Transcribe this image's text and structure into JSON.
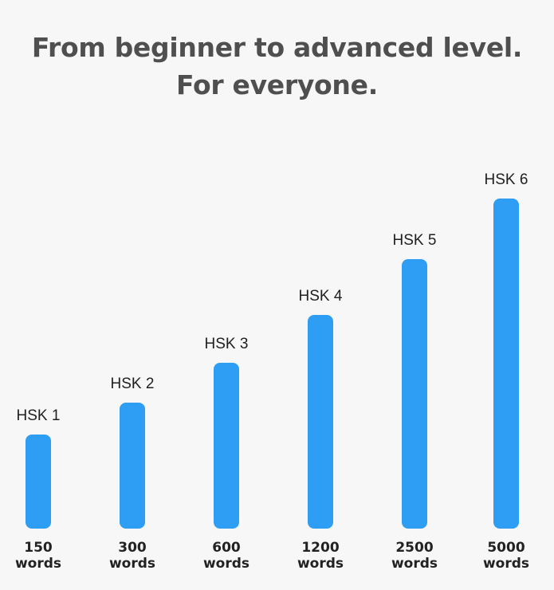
{
  "header": {
    "line1": "From beginner to advanced level.",
    "line2": "For everyone."
  },
  "colors": {
    "bar": "#2e9ef4",
    "background": "#f7f7f7",
    "title": "#4f4f4f"
  },
  "chart_data": {
    "type": "bar",
    "categories": [
      "HSK 1",
      "HSK 2",
      "HSK 3",
      "HSK 4",
      "HSK 5",
      "HSK 6"
    ],
    "values": [
      150,
      300,
      600,
      1200,
      2500,
      5000
    ],
    "value_labels": [
      [
        "150",
        "words"
      ],
      [
        "300",
        "words"
      ],
      [
        "600",
        "words"
      ],
      [
        "1200",
        "words"
      ],
      [
        "2500",
        "words"
      ],
      [
        "5000",
        "words"
      ]
    ],
    "title": "",
    "xlabel": "",
    "ylabel": "",
    "grid": false,
    "axes_visible": false
  }
}
